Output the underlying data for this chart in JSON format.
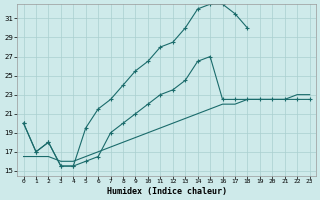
{
  "xlabel": "Humidex (Indice chaleur)",
  "bg_color": "#ceeaea",
  "grid_color": "#aacfcf",
  "line_color": "#1a6b6b",
  "xlim": [
    -0.5,
    23.5
  ],
  "ylim": [
    14.5,
    32.5
  ],
  "xticks": [
    0,
    1,
    2,
    3,
    4,
    5,
    6,
    7,
    8,
    9,
    10,
    11,
    12,
    13,
    14,
    15,
    16,
    17,
    18,
    19,
    20,
    21,
    22,
    23
  ],
  "yticks": [
    15,
    17,
    19,
    21,
    23,
    25,
    27,
    29,
    31
  ],
  "line1_x": [
    0,
    1,
    2,
    3,
    4,
    5,
    6,
    7,
    8,
    9,
    10,
    11,
    12,
    13,
    14,
    15,
    16,
    17,
    18
  ],
  "line1_y": [
    20,
    17,
    18,
    15.5,
    15.5,
    19.5,
    21.5,
    22.5,
    24,
    25.5,
    26.5,
    28,
    28.5,
    30,
    32,
    32.5,
    32.5,
    31.5,
    30
  ],
  "line2_x": [
    0,
    1,
    2,
    3,
    4,
    5,
    6,
    7,
    8,
    9,
    10,
    11,
    12,
    13,
    14,
    15,
    16,
    17,
    18,
    19,
    20,
    21,
    22,
    23
  ],
  "line2_y": [
    20,
    17,
    18,
    15.5,
    15.5,
    16,
    16.5,
    19,
    20,
    21,
    22,
    23,
    23.5,
    24.5,
    26.5,
    27,
    22.5,
    22.5,
    22.5,
    22.5,
    22.5,
    22.5,
    22.5,
    22.5
  ],
  "line3_x": [
    0,
    1,
    2,
    3,
    4,
    5,
    6,
    7,
    8,
    9,
    10,
    11,
    12,
    13,
    14,
    15,
    16,
    17,
    18,
    19,
    20,
    21,
    22,
    23
  ],
  "line3_y": [
    16.5,
    16.5,
    16.5,
    16,
    16,
    16.5,
    17,
    17.5,
    18,
    18.5,
    19,
    19.5,
    20,
    20.5,
    21,
    21.5,
    22,
    22,
    22.5,
    22.5,
    22.5,
    22.5,
    23,
    23
  ]
}
